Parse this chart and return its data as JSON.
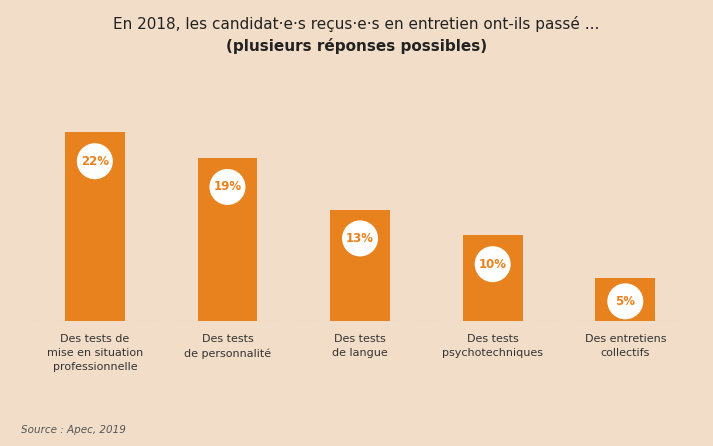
{
  "title_line1": "En 2018, les candidat·e·s reçus·e·s en entretien ont-ils passé ...",
  "title_line2": "(plusieurs réponses possibles)",
  "categories": [
    "Des tests de\nmise en situation\nprofessionnelle",
    "Des tests\nde personnalité",
    "Des tests\nde langue",
    "Des tests\npsychotechniques",
    "Des entretiens\ncollectifs"
  ],
  "values": [
    22,
    19,
    13,
    10,
    5
  ],
  "labels": [
    "22%",
    "19%",
    "13%",
    "10%",
    "5%"
  ],
  "bar_color": "#E8821E",
  "label_color": "#E8821E",
  "background_color": "#F2DEC8",
  "title_color": "#222222",
  "source_text": "Source : Apec, 2019",
  "ylim": [
    0,
    26
  ],
  "bar_width": 0.45
}
